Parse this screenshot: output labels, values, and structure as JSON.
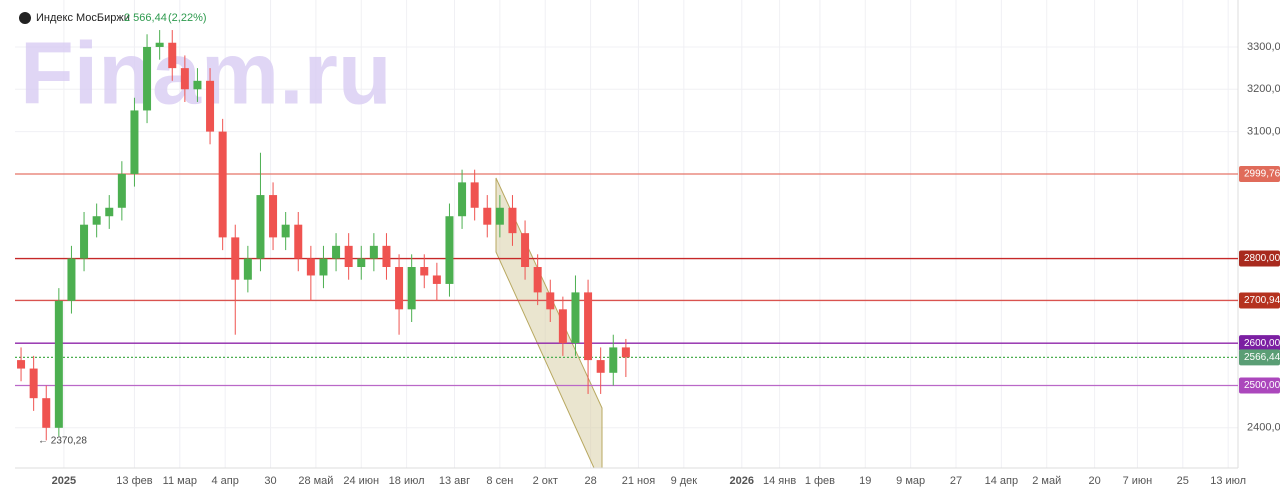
{
  "chart_data": {
    "type": "candlestick",
    "title": "Индекс МосБиржи",
    "last_price": "2 566,44",
    "change": "(2,22%)",
    "watermark": "Finam.ru",
    "annotation": "← 2370,28",
    "x": [
      -17,
      -12,
      -7,
      -2,
      3,
      8,
      13,
      18,
      23,
      28,
      33,
      38,
      43,
      48,
      53,
      58,
      63,
      68,
      73,
      78,
      83,
      88,
      93,
      98,
      103,
      108,
      113,
      118,
      123,
      128,
      133,
      138,
      143,
      148,
      153,
      158,
      163,
      168,
      173,
      178,
      183,
      188,
      193,
      198,
      203,
      208,
      213,
      218,
      223
    ],
    "open": [
      2560,
      2540,
      2470,
      2400,
      2700,
      2800,
      2880,
      2900,
      2920,
      3000,
      3150,
      3300,
      3310,
      3250,
      3200,
      3220,
      3100,
      2850,
      2750,
      2800,
      2950,
      2850,
      2880,
      2800,
      2760,
      2800,
      2830,
      2780,
      2800,
      2830,
      2780,
      2680,
      2780,
      2760,
      2740,
      2900,
      2980,
      2920,
      2880,
      2920,
      2860,
      2780,
      2720,
      2680,
      2600,
      2720,
      2560,
      2530,
      2590
    ],
    "high": [
      2590,
      2570,
      2500,
      2730,
      2830,
      2910,
      2930,
      2950,
      3030,
      3180,
      3330,
      3340,
      3340,
      3280,
      3250,
      3250,
      3130,
      2880,
      2830,
      3050,
      2980,
      2910,
      2910,
      2830,
      2830,
      2860,
      2860,
      2830,
      2860,
      2860,
      2810,
      2810,
      2810,
      2790,
      2930,
      3010,
      3010,
      2950,
      2950,
      2950,
      2890,
      2810,
      2750,
      2710,
      2760,
      2750,
      2590,
      2620,
      2610
    ],
    "low": [
      2510,
      2440,
      2370.28,
      2380,
      2670,
      2770,
      2850,
      2870,
      2890,
      2970,
      3120,
      3270,
      3220,
      3170,
      3170,
      3070,
      2820,
      2620,
      2720,
      2770,
      2820,
      2820,
      2770,
      2700,
      2730,
      2770,
      2750,
      2750,
      2770,
      2750,
      2620,
      2650,
      2730,
      2700,
      2710,
      2870,
      2890,
      2850,
      2850,
      2830,
      2750,
      2690,
      2650,
      2570,
      2570,
      2480,
      2480,
      2500,
      2520
    ],
    "close": [
      2540,
      2470,
      2400,
      2700,
      2800,
      2880,
      2900,
      2920,
      3000,
      3150,
      3300,
      3310,
      3250,
      3200,
      3220,
      3100,
      2850,
      2750,
      2800,
      2950,
      2850,
      2880,
      2800,
      2760,
      2800,
      2830,
      2780,
      2800,
      2830,
      2780,
      2680,
      2780,
      2760,
      2740,
      2900,
      2980,
      2920,
      2880,
      2920,
      2860,
      2780,
      2720,
      2680,
      2600,
      2720,
      2560,
      2530,
      2590,
      2566.44
    ],
    "up_color": "#4caf50",
    "down_color": "#ef5350",
    "xlim": [
      -19.4,
      465.9
    ],
    "xticks": [
      {
        "value": 0,
        "label": "2025"
      },
      {
        "value": 28,
        "label": "13 фев"
      },
      {
        "value": 46,
        "label": "11 мар"
      },
      {
        "value": 64,
        "label": "4 апр"
      },
      {
        "value": 82,
        "label": "30"
      },
      {
        "value": 100,
        "label": "28 май"
      },
      {
        "value": 118,
        "label": "24 июн"
      },
      {
        "value": 136,
        "label": "18 июл"
      },
      {
        "value": 155,
        "label": "13 авг"
      },
      {
        "value": 173,
        "label": "8 сен"
      },
      {
        "value": 191,
        "label": "2 окт"
      },
      {
        "value": 209,
        "label": "28"
      },
      {
        "value": 228,
        "label": "21 ноя"
      },
      {
        "value": 246,
        "label": "9 дек"
      },
      {
        "value": 269,
        "label": "2026"
      },
      {
        "value": 284,
        "label": "14 янв"
      },
      {
        "value": 300,
        "label": "1 фев"
      },
      {
        "value": 318,
        "label": "19"
      },
      {
        "value": 336,
        "label": "9 мар"
      },
      {
        "value": 354,
        "label": "27"
      },
      {
        "value": 372,
        "label": "14 апр"
      },
      {
        "value": 390,
        "label": "2 май"
      },
      {
        "value": 409,
        "label": "20"
      },
      {
        "value": 426,
        "label": "7 июн"
      },
      {
        "value": 444,
        "label": "25"
      },
      {
        "value": 462,
        "label": "13 июл"
      }
    ],
    "ylim": [
      2305,
      3411
    ],
    "yticks": [
      {
        "value": 2400,
        "label": "2400,00"
      },
      {
        "value": 3100,
        "label": "3100,00"
      },
      {
        "value": 3200,
        "label": "3200,00"
      },
      {
        "value": 3300,
        "label": "3300,00"
      }
    ],
    "levels": [
      {
        "value": 2999.76,
        "label": "2999,76",
        "color": "#e57368",
        "box": "#e06b5a"
      },
      {
        "value": 2800,
        "label": "2800,00",
        "color": "#c62828",
        "box": "#a82a1e"
      },
      {
        "value": 2700.94,
        "label": "2700,94",
        "color": "#d9534f",
        "box": "#b5321f"
      },
      {
        "value": 2600,
        "label": "2600,00",
        "color": "#8e24aa",
        "box": "#7b1fa2"
      },
      {
        "value": 2566.44,
        "label": "2566,44",
        "color": "#4caf50",
        "box": "#5a9e75",
        "dotted": true
      },
      {
        "value": 2500,
        "label": "2500,00",
        "color": "#ba68c8",
        "box": "#ab47bc"
      }
    ],
    "grid": true
  }
}
